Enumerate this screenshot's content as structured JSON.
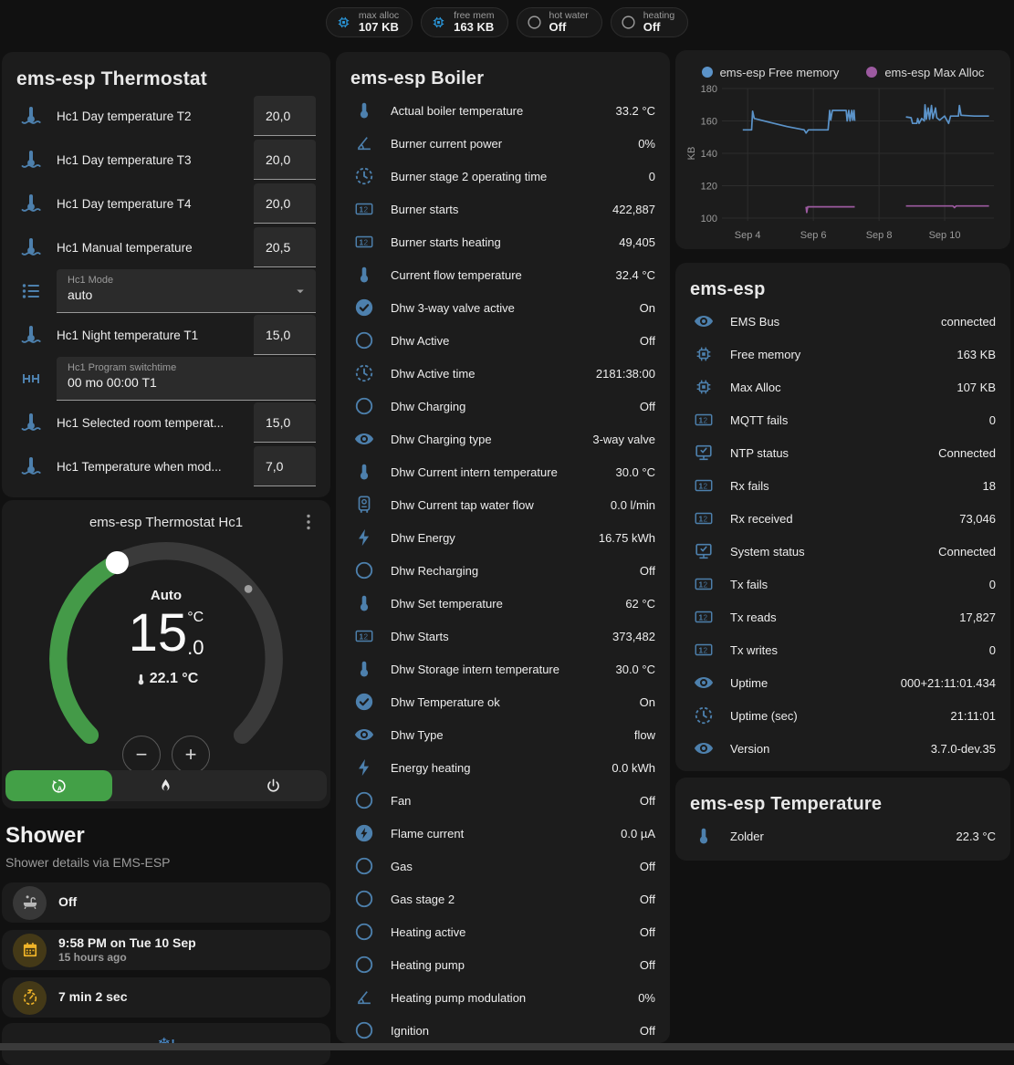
{
  "colors": {
    "page_bg": "#111111",
    "card_bg": "#1c1c1c",
    "row_icon_blue": "#4d80ad",
    "chip_icon_blue": "#2b9fe8",
    "active_green": "#43a047",
    "dial_green": "#449a48",
    "dial_track": "#3a3a3a",
    "amber": "#f0b429",
    "snowflake_blue": "#4d8fd0"
  },
  "chips": [
    {
      "icon": "chip",
      "style": "blue",
      "caption": "max alloc",
      "value": "107 KB"
    },
    {
      "icon": "chip",
      "style": "blue",
      "caption": "free mem",
      "value": "163 KB"
    },
    {
      "icon": "circle",
      "style": "grey",
      "caption": "hot water",
      "value": "Off"
    },
    {
      "icon": "circle",
      "style": "grey",
      "caption": "heating",
      "value": "Off"
    }
  ],
  "thermostat_card": {
    "title": "ems-esp Thermostat",
    "rows": [
      {
        "type": "number",
        "icon": "thermometer-water",
        "label": "Hc1 Day temperature T2",
        "value": "20,0"
      },
      {
        "type": "number",
        "icon": "thermometer-water",
        "label": "Hc1 Day temperature T3",
        "value": "20,0"
      },
      {
        "type": "number",
        "icon": "thermometer-water",
        "label": "Hc1 Day temperature T4",
        "value": "20,0"
      },
      {
        "type": "number",
        "icon": "thermometer-water",
        "label": "Hc1 Manual temperature",
        "value": "20,5"
      },
      {
        "type": "select",
        "icon": "format-list",
        "label": "Hc1 Mode",
        "value": "auto"
      },
      {
        "type": "number",
        "icon": "thermometer-water",
        "label": "Hc1 Night temperature T1",
        "value": "15,0"
      },
      {
        "type": "text",
        "icon": "pipe-valve",
        "label": "Hc1 Program switchtime",
        "value": "00 mo 00:00 T1"
      },
      {
        "type": "number",
        "icon": "thermometer-water",
        "label": "Hc1 Selected room temperat...",
        "value": "15,0"
      },
      {
        "type": "number",
        "icon": "thermometer-water",
        "label": "Hc1 Temperature when mod...",
        "value": "7,0"
      }
    ]
  },
  "dial_card": {
    "title": "ems-esp Thermostat Hc1",
    "mode_label": "Auto",
    "target_int": "15",
    "target_unit": "°C",
    "target_dec": ".0",
    "current_label": "22.1 °C",
    "min_temp": 5,
    "max_temp": 30,
    "target_temp": 15,
    "current_temp": 22.1,
    "minus_label": "−",
    "plus_label": "+",
    "mode_buttons": [
      {
        "icon": "auto-mode",
        "active": true
      },
      {
        "icon": "flame",
        "active": false
      },
      {
        "icon": "power",
        "active": false
      }
    ]
  },
  "shower": {
    "title": "Shower",
    "subtitle": "Shower details via EMS-ESP",
    "cards": [
      {
        "icon": "bathtub",
        "style": "grey",
        "title": "Off",
        "subtitle": ""
      },
      {
        "icon": "calendar",
        "style": "amber",
        "title": "9:58 PM on Tue 10 Sep",
        "subtitle": "15 hours ago"
      },
      {
        "icon": "timer",
        "style": "amber",
        "title": "7 min 2 sec",
        "subtitle": ""
      }
    ],
    "alert_glyph": "❄",
    "alert_mark": "!"
  },
  "boiler_card": {
    "title": "ems-esp Boiler",
    "rows": [
      {
        "icon": "thermometer",
        "label": "Actual boiler temperature",
        "value": "33.2 °C"
      },
      {
        "icon": "angle",
        "label": "Burner current power",
        "value": "0%"
      },
      {
        "icon": "clock-dashed",
        "label": "Burner stage 2 operating time",
        "value": "0"
      },
      {
        "icon": "counter",
        "label": "Burner starts",
        "value": "422,887"
      },
      {
        "icon": "counter",
        "label": "Burner starts heating",
        "value": "49,405"
      },
      {
        "icon": "thermometer",
        "label": "Current flow temperature",
        "value": "32.4 °C"
      },
      {
        "icon": "check-circle",
        "label": "Dhw 3-way valve active",
        "value": "On"
      },
      {
        "icon": "circle",
        "label": "Dhw Active",
        "value": "Off"
      },
      {
        "icon": "clock-dashed",
        "label": "Dhw Active time",
        "value": "2181:38:00"
      },
      {
        "icon": "circle",
        "label": "Dhw Charging",
        "value": "Off"
      },
      {
        "icon": "eye",
        "label": "Dhw Charging type",
        "value": "3-way valve"
      },
      {
        "icon": "thermometer",
        "label": "Dhw Current intern temperature",
        "value": "30.0 °C"
      },
      {
        "icon": "water-boiler",
        "label": "Dhw Current tap water flow",
        "value": "0.0 l/min"
      },
      {
        "icon": "flash",
        "label": "Dhw Energy",
        "value": "16.75 kWh"
      },
      {
        "icon": "circle",
        "label": "Dhw Recharging",
        "value": "Off"
      },
      {
        "icon": "thermometer",
        "label": "Dhw Set temperature",
        "value": "62 °C"
      },
      {
        "icon": "counter",
        "label": "Dhw Starts",
        "value": "373,482"
      },
      {
        "icon": "thermometer",
        "label": "Dhw Storage intern temperature",
        "value": "30.0 °C"
      },
      {
        "icon": "check-circle",
        "label": "Dhw Temperature ok",
        "value": "On"
      },
      {
        "icon": "eye",
        "label": "Dhw Type",
        "value": "flow"
      },
      {
        "icon": "flash",
        "label": "Energy heating",
        "value": "0.0 kWh"
      },
      {
        "icon": "circle",
        "label": "Fan",
        "value": "Off"
      },
      {
        "icon": "flash-circle",
        "label": "Flame current",
        "value": "0.0 µA"
      },
      {
        "icon": "circle",
        "label": "Gas",
        "value": "Off"
      },
      {
        "icon": "circle",
        "label": "Gas stage 2",
        "value": "Off"
      },
      {
        "icon": "circle",
        "label": "Heating active",
        "value": "Off"
      },
      {
        "icon": "circle",
        "label": "Heating pump",
        "value": "Off"
      },
      {
        "icon": "angle",
        "label": "Heating pump modulation",
        "value": "0%"
      },
      {
        "icon": "circle",
        "label": "Ignition",
        "value": "Off"
      }
    ]
  },
  "chart_data": {
    "type": "line",
    "title": "",
    "ylabel": "KB",
    "xlabel": "",
    "grid": true,
    "legend_position": "top",
    "xlim": [
      3.3,
      11.5
    ],
    "ylim": [
      100,
      180
    ],
    "yticks": [
      100,
      120,
      140,
      160,
      180
    ],
    "xticks": [
      {
        "x": 4,
        "label": "Sep 4"
      },
      {
        "x": 6,
        "label": "Sep 6"
      },
      {
        "x": 8,
        "label": "Sep 8"
      },
      {
        "x": 10,
        "label": "Sep 10"
      }
    ],
    "series": [
      {
        "name": "ems-esp Free memory",
        "color": "#5b93c9",
        "points": [
          [
            3.85,
            154.5
          ],
          [
            4.12,
            154.5
          ],
          [
            4.15,
            166
          ],
          [
            4.2,
            161.5
          ],
          [
            4.6,
            159.5
          ],
          [
            5.2,
            156.5
          ],
          [
            5.6,
            155
          ],
          [
            5.72,
            154.5
          ],
          [
            5.78,
            152.5
          ],
          [
            5.85,
            154.5
          ],
          [
            6.45,
            154.5
          ],
          [
            6.5,
            166.5
          ],
          [
            6.53,
            160.5
          ],
          [
            6.58,
            166.5
          ],
          [
            7.0,
            166.5
          ],
          [
            7.03,
            160
          ],
          [
            7.08,
            166.5
          ],
          [
            7.12,
            160
          ],
          [
            7.17,
            166.5
          ],
          [
            7.2,
            160.5
          ],
          [
            7.24,
            166.5
          ],
          [
            7.26,
            160
          ],
          null,
          [
            8.82,
            162.5
          ],
          [
            8.98,
            162
          ],
          [
            9.02,
            158.5
          ],
          [
            9.15,
            158.5
          ],
          [
            9.18,
            161.5
          ],
          [
            9.22,
            158.5
          ],
          [
            9.3,
            161.5
          ],
          [
            9.38,
            160
          ],
          [
            9.4,
            170
          ],
          [
            9.44,
            161
          ],
          [
            9.5,
            168
          ],
          [
            9.54,
            161
          ],
          [
            9.6,
            169.5
          ],
          [
            9.64,
            161.5
          ],
          [
            9.72,
            168
          ],
          [
            9.76,
            162
          ],
          [
            9.85,
            160.5
          ],
          [
            10.0,
            163
          ],
          [
            10.12,
            158.5
          ],
          [
            10.18,
            163
          ],
          [
            10.42,
            163
          ],
          [
            10.45,
            169.5
          ],
          [
            10.5,
            163.5
          ],
          [
            10.9,
            163
          ],
          [
            11.35,
            163
          ]
        ]
      },
      {
        "name": "ems-esp Max Alloc",
        "color": "#9c5aa0",
        "points": [
          [
            5.78,
            107
          ],
          [
            5.8,
            103.5
          ],
          [
            5.83,
            107
          ],
          [
            7.26,
            107
          ],
          null,
          [
            8.82,
            107.5
          ],
          [
            10.25,
            107.5
          ],
          [
            10.3,
            106.5
          ],
          [
            10.35,
            107.5
          ],
          [
            11.35,
            107.5
          ]
        ]
      }
    ]
  },
  "emsesp_card": {
    "title": "ems-esp",
    "rows": [
      {
        "icon": "eye",
        "label": "EMS Bus",
        "value": "connected"
      },
      {
        "icon": "chip",
        "label": "Free memory",
        "value": "163 KB"
      },
      {
        "icon": "chip",
        "label": "Max Alloc",
        "value": "107 KB"
      },
      {
        "icon": "counter",
        "label": "MQTT fails",
        "value": "0"
      },
      {
        "icon": "monitor",
        "label": "NTP status",
        "value": "Connected"
      },
      {
        "icon": "counter",
        "label": "Rx fails",
        "value": "18"
      },
      {
        "icon": "counter",
        "label": "Rx received",
        "value": "73,046"
      },
      {
        "icon": "monitor",
        "label": "System status",
        "value": "Connected"
      },
      {
        "icon": "counter",
        "label": "Tx fails",
        "value": "0"
      },
      {
        "icon": "counter",
        "label": "Tx reads",
        "value": "17,827"
      },
      {
        "icon": "counter",
        "label": "Tx writes",
        "value": "0"
      },
      {
        "icon": "eye",
        "label": "Uptime",
        "value": "000+21:11:01.434"
      },
      {
        "icon": "clock-dashed",
        "label": "Uptime (sec)",
        "value": "21:11:01"
      },
      {
        "icon": "eye",
        "label": "Version",
        "value": "3.7.0-dev.35"
      }
    ]
  },
  "temperature_card": {
    "title": "ems-esp Temperature",
    "rows": [
      {
        "icon": "thermometer",
        "label": "Zolder",
        "value": "22.3 °C"
      }
    ]
  }
}
